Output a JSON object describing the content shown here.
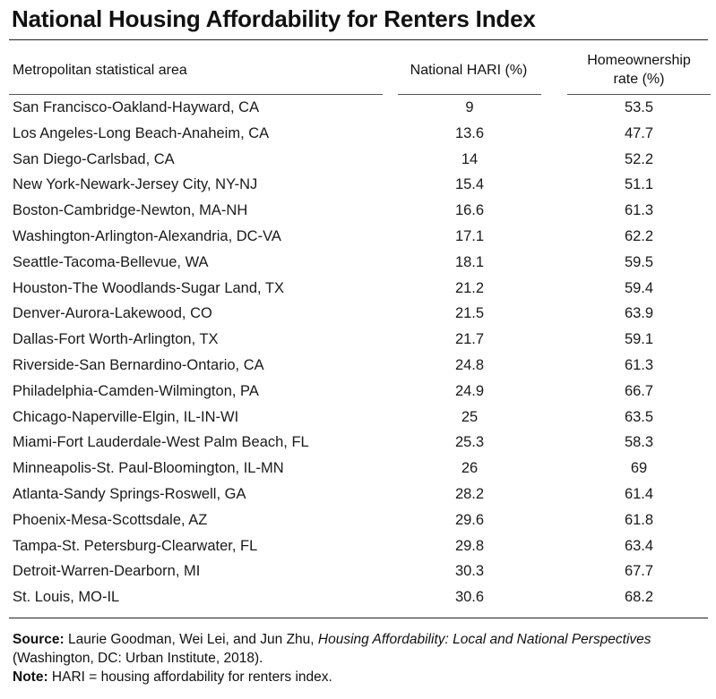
{
  "title": "National Housing Affordability for Renters Index",
  "headers": {
    "msa": "Metropolitan statistical area",
    "hari": "National HARI (%)",
    "homeownership_line1": "Homeownership",
    "homeownership_line2": "rate (%)"
  },
  "rows": [
    {
      "msa": "San Francisco-Oakland-Hayward, CA",
      "hari": "9",
      "homeownership": "53.5"
    },
    {
      "msa": "Los Angeles-Long Beach-Anaheim, CA",
      "hari": "13.6",
      "homeownership": "47.7"
    },
    {
      "msa": "San Diego-Carlsbad, CA",
      "hari": "14",
      "homeownership": "52.2"
    },
    {
      "msa": "New York-Newark-Jersey City, NY-NJ",
      "hari": "15.4",
      "homeownership": "51.1"
    },
    {
      "msa": "Boston-Cambridge-Newton, MA-NH",
      "hari": "16.6",
      "homeownership": "61.3"
    },
    {
      "msa": "Washington-Arlington-Alexandria, DC-VA",
      "hari": "17.1",
      "homeownership": "62.2"
    },
    {
      "msa": "Seattle-Tacoma-Bellevue, WA",
      "hari": "18.1",
      "homeownership": "59.5"
    },
    {
      "msa": "Houston-The Woodlands-Sugar Land, TX",
      "hari": "21.2",
      "homeownership": "59.4"
    },
    {
      "msa": "Denver-Aurora-Lakewood, CO",
      "hari": "21.5",
      "homeownership": "63.9"
    },
    {
      "msa": "Dallas-Fort Worth-Arlington, TX",
      "hari": "21.7",
      "homeownership": "59.1"
    },
    {
      "msa": "Riverside-San Bernardino-Ontario, CA",
      "hari": "24.8",
      "homeownership": "61.3"
    },
    {
      "msa": "Philadelphia-Camden-Wilmington, PA",
      "hari": "24.9",
      "homeownership": "66.7"
    },
    {
      "msa": "Chicago-Naperville-Elgin, IL-IN-WI",
      "hari": "25",
      "homeownership": "63.5"
    },
    {
      "msa": "Miami-Fort Lauderdale-West Palm Beach, FL",
      "hari": "25.3",
      "homeownership": "58.3"
    },
    {
      "msa": "Minneapolis-St. Paul-Bloomington, IL-MN",
      "hari": "26",
      "homeownership": "69"
    },
    {
      "msa": "Atlanta-Sandy Springs-Roswell, GA",
      "hari": "28.2",
      "homeownership": "61.4"
    },
    {
      "msa": "Phoenix-Mesa-Scottsdale, AZ",
      "hari": "29.6",
      "homeownership": "61.8"
    },
    {
      "msa": "Tampa-St. Petersburg-Clearwater, FL",
      "hari": "29.8",
      "homeownership": "63.4"
    },
    {
      "msa": "Detroit-Warren-Dearborn, MI",
      "hari": "30.3",
      "homeownership": "67.7"
    },
    {
      "msa": "St. Louis, MO-IL",
      "hari": "30.6",
      "homeownership": "68.2"
    }
  ],
  "footer": {
    "source_label": "Source:",
    "source_authors": "Laurie Goodman, Wei Lei, and Jun Zhu,",
    "source_title": "Housing Affordability: Local and National Perspectives",
    "source_publisher": "(Washington, DC: Urban Institute, 2018).",
    "note_label": "Note:",
    "note_text": "HARI = housing affordability for renters index."
  }
}
